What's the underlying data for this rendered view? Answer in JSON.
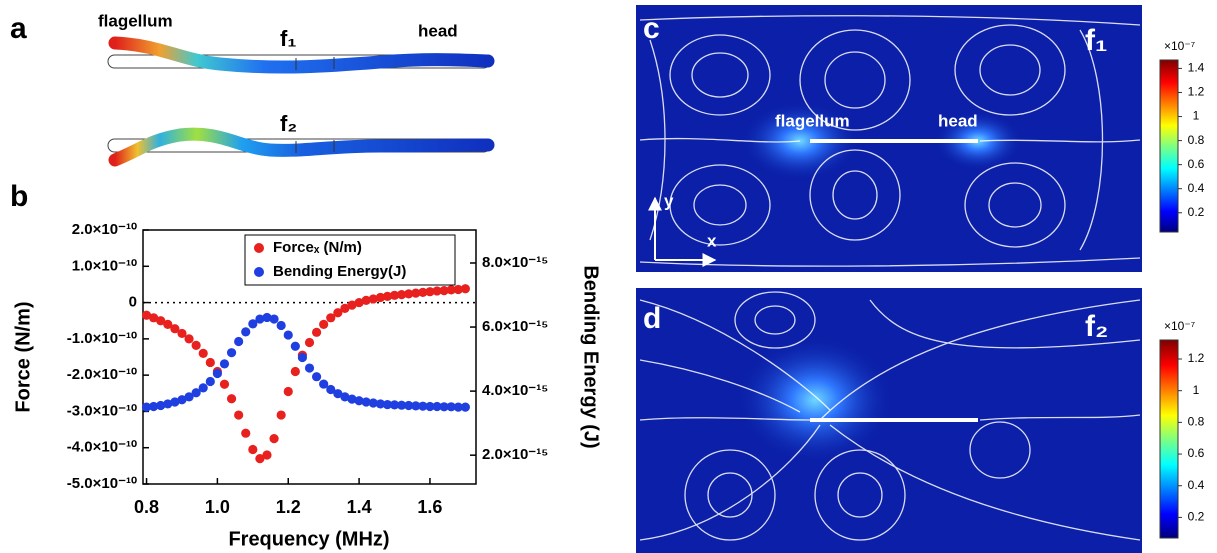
{
  "panel_a": {
    "label": "a",
    "upper": {
      "flagellum": "flagellum",
      "mode": "f₁",
      "head": "head"
    },
    "lower": {
      "mode": "f₂"
    }
  },
  "chart_data": {
    "type": "scatter",
    "label": "b",
    "xlabel": "Frequency (MHz)",
    "ylabel": "Force (N/m)",
    "y2label": "Bending Energy (J)",
    "xlim": [
      0.79,
      1.73
    ],
    "xticks": [
      0.8,
      {
        "value": 1,
        "label": "1.0"
      },
      1.2,
      1.4,
      1.6
    ],
    "ylim": [
      -5e-10,
      2e-10
    ],
    "yticks": [
      {
        "value": 2e-10,
        "label": "2.0×10⁻¹⁰"
      },
      {
        "value": 1e-10,
        "label": "1.0×10⁻¹⁰"
      },
      0,
      {
        "value": -1e-10,
        "label": "-1.0×10⁻¹⁰"
      },
      {
        "value": -2e-10,
        "label": "-2.0×10⁻¹⁰"
      },
      {
        "value": -3e-10,
        "label": "-3.0×10⁻¹⁰"
      },
      {
        "value": -4e-10,
        "label": "-4.0×10⁻¹⁰"
      },
      {
        "value": -5e-10,
        "label": "-5.0×10⁻¹⁰"
      }
    ],
    "y2lim": [
      1.1e-15,
      9.03e-15
    ],
    "y2ticks": [
      {
        "value": 2e-15,
        "label": "2.0×10⁻¹⁵"
      },
      {
        "value": 4e-15,
        "label": "4.0×10⁻¹⁵"
      },
      {
        "value": 6e-15,
        "label": "6.0×10⁻¹⁵"
      },
      {
        "value": 8e-15,
        "label": "8.0×10⁻¹⁵"
      }
    ],
    "hline": 0,
    "legend": "top",
    "x": [
      0.8,
      0.82,
      0.84,
      0.86,
      0.88,
      0.9,
      0.92,
      0.94,
      0.96,
      0.98,
      1.0,
      1.02,
      1.04,
      1.06,
      1.08,
      1.1,
      1.12,
      1.14,
      1.16,
      1.18,
      1.2,
      1.22,
      1.24,
      1.26,
      1.28,
      1.3,
      1.32,
      1.34,
      1.36,
      1.38,
      1.4,
      1.42,
      1.44,
      1.46,
      1.48,
      1.5,
      1.52,
      1.54,
      1.56,
      1.58,
      1.6,
      1.62,
      1.64,
      1.66,
      1.68,
      1.7
    ],
    "series": [
      {
        "name": "Forceₓ (N/m)",
        "color": "#e8201e",
        "values": [
          -3.5e-11,
          -4.2e-11,
          -5e-11,
          -6e-11,
          -7.2e-11,
          -8.5e-11,
          -1e-10,
          -1.18e-10,
          -1.4e-10,
          -1.65e-10,
          -1.9e-10,
          -2.25e-10,
          -2.65e-10,
          -3.1e-10,
          -3.6e-10,
          -4.05e-10,
          -4.3e-10,
          -4.2e-10,
          -3.75e-10,
          -3.1e-10,
          -2.45e-10,
          -1.9e-10,
          -1.45e-10,
          -1.1e-10,
          -8.2e-11,
          -6e-11,
          -4.2e-11,
          -2.8e-11,
          -1.6e-11,
          -7e-12,
          0,
          6e-12,
          1e-11,
          1.4e-11,
          1.7e-11,
          2e-11,
          2.2e-11,
          2.4e-11,
          2.6e-11,
          2.8e-11,
          3e-11,
          3.2e-11,
          3.3e-11,
          3.5e-11,
          3.6e-11,
          3.8e-11
        ]
      },
      {
        "name": "Bending Energy(J)",
        "color": "#1f3fe0",
        "axis": "y2",
        "values": [
          3.5e-15,
          3.52e-15,
          3.55e-15,
          3.6e-15,
          3.66e-15,
          3.73e-15,
          3.82e-15,
          3.95e-15,
          4.1e-15,
          4.3e-15,
          4.55e-15,
          4.85e-15,
          5.2e-15,
          5.55e-15,
          5.85e-15,
          6.1e-15,
          6.25e-15,
          6.3e-15,
          6.25e-15,
          6.05e-15,
          5.75e-15,
          5.4e-15,
          5.05e-15,
          4.72e-15,
          4.45e-15,
          4.22e-15,
          4.05e-15,
          3.92e-15,
          3.82e-15,
          3.75e-15,
          3.7e-15,
          3.66e-15,
          3.63e-15,
          3.6e-15,
          3.58e-15,
          3.57e-15,
          3.56e-15,
          3.55e-15,
          3.54e-15,
          3.53e-15,
          3.52e-15,
          3.52e-15,
          3.51e-15,
          3.51e-15,
          3.5e-15,
          3.5e-15
        ]
      }
    ]
  },
  "panel_c": {
    "label": "c",
    "mode": "f₁",
    "flagellum": "flagellum",
    "head": "head",
    "axis_y": "y",
    "axis_x": "x",
    "colorbar": {
      "multiplier": "×10⁻⁷",
      "lim": [
        0.04,
        1.47
      ],
      "ticks": [
        0.2,
        0.4,
        0.6,
        0.8,
        1,
        1.2,
        1.4
      ]
    }
  },
  "panel_d": {
    "label": "d",
    "mode": "f₂",
    "colorbar": {
      "multiplier": "×10⁻⁷",
      "lim": [
        0.07,
        1.32
      ],
      "ticks": [
        0.2,
        0.4,
        0.6,
        0.8,
        1,
        1.2
      ]
    }
  }
}
